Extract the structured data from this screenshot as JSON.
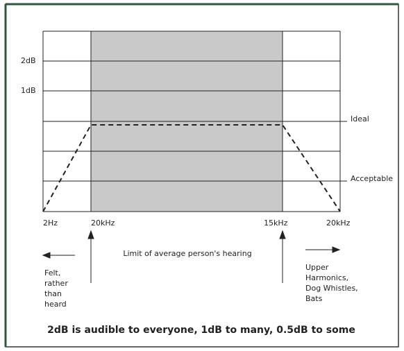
{
  "y_labels": [
    "2dB",
    "1dB"
  ],
  "right_labels": [
    "Ideal",
    "Acceptable"
  ],
  "x_labels": [
    "2Hz",
    "20kHz",
    "15kHz",
    "20kHz"
  ],
  "annotations": {
    "hearing_limit": "Limit of average person's hearing",
    "left_note": [
      "Felt,",
      "rather",
      "than",
      "heard"
    ],
    "right_note": [
      "Upper",
      "Harmonics,",
      "Dog Whistles,",
      "Bats"
    ]
  },
  "caption": "2dB is audible to everyone, 1dB to many, 0.5dB to some"
}
